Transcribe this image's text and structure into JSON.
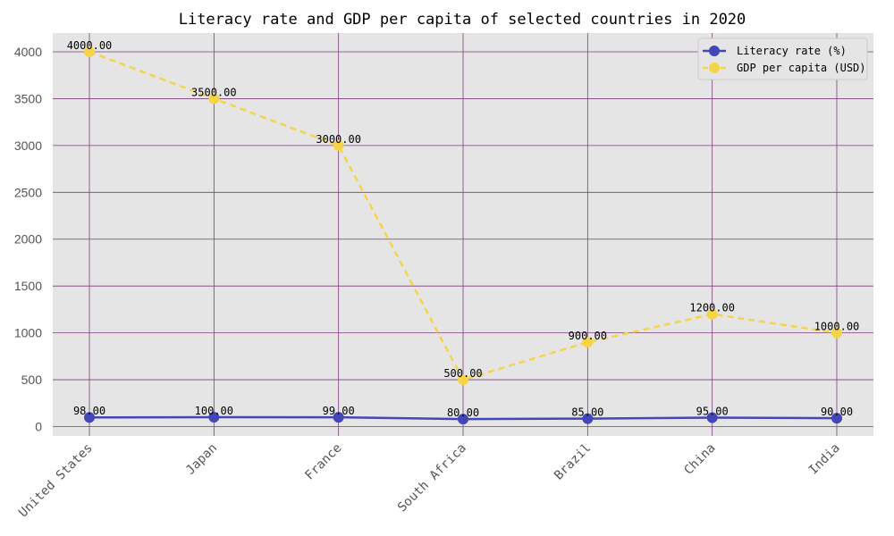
{
  "chart_data": {
    "type": "line",
    "title": "Literacy rate and GDP per capita of selected countries in 2020",
    "xlabel": "",
    "ylabel": "",
    "categories": [
      "United States",
      "Japan",
      "France",
      "South Africa",
      "Brazil",
      "China",
      "India"
    ],
    "yticks": [
      0,
      500,
      1000,
      1500,
      2000,
      2500,
      3000,
      3500,
      4000
    ],
    "ylim": [
      -100,
      4200
    ],
    "grid": true,
    "legend_position": "top-right",
    "series": [
      {
        "name": "Literacy rate (%)",
        "values": [
          98,
          100,
          99,
          80,
          85,
          95,
          90
        ],
        "labels": [
          "98.00",
          "100.00",
          "99.00",
          "80.00",
          "85.00",
          "95.00",
          "90.00"
        ],
        "color": "#4346b6",
        "style": "solid"
      },
      {
        "name": "GDP per capita (USD)",
        "values": [
          4000,
          3500,
          3000,
          500,
          900,
          1200,
          1000
        ],
        "labels": [
          "4000.00",
          "3500.00",
          "3000.00",
          "500.00",
          "900.00",
          "1200.00",
          "1000.00"
        ],
        "color": "#f5d547",
        "style": "dashed"
      }
    ]
  }
}
